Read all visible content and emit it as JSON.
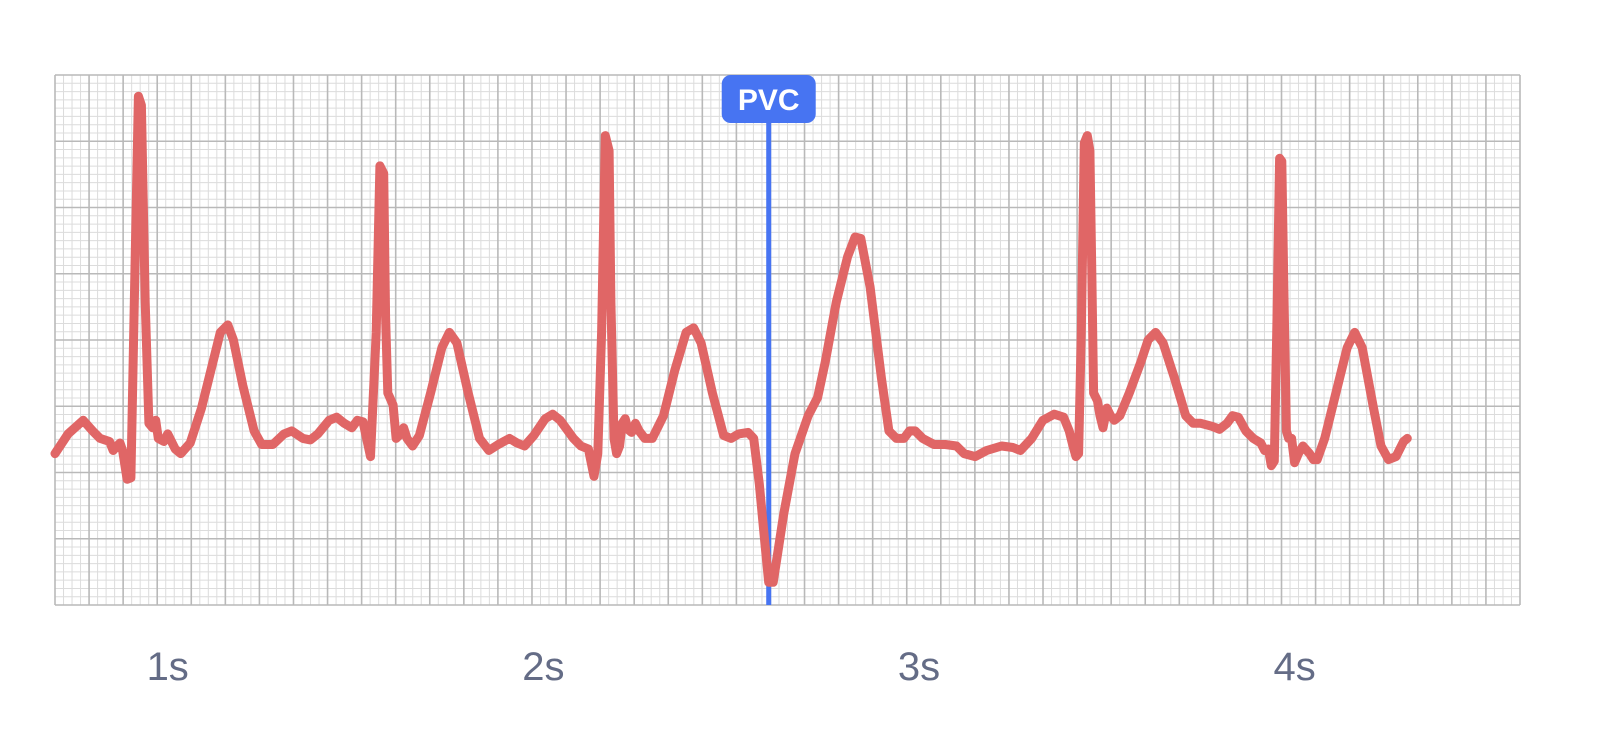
{
  "chart_data": {
    "type": "line",
    "title": "",
    "xlabel": "",
    "ylabel": "",
    "x_range": [
      0.7,
      4.6
    ],
    "y_range": [
      -1.0,
      2.5
    ],
    "x_ticks": [
      {
        "value": 1,
        "label": "1s"
      },
      {
        "value": 2,
        "label": "2s"
      },
      {
        "value": 3,
        "label": "3s"
      },
      {
        "value": 4,
        "label": "4s"
      }
    ],
    "grid": true,
    "legend": "none",
    "series": [
      {
        "color": "#e06666",
        "points": [
          [
            0.7,
            0.0
          ],
          [
            0.735,
            0.13
          ],
          [
            0.775,
            0.22
          ],
          [
            0.8,
            0.15
          ],
          [
            0.82,
            0.1
          ],
          [
            0.845,
            0.08
          ],
          [
            0.855,
            0.02
          ],
          [
            0.865,
            0.05
          ],
          [
            0.873,
            0.07
          ],
          [
            0.88,
            0.02
          ],
          [
            0.892,
            -0.17
          ],
          [
            0.902,
            -0.16
          ],
          [
            0.912,
            1.1
          ],
          [
            0.922,
            2.36
          ],
          [
            0.93,
            2.3
          ],
          [
            0.94,
            1.0
          ],
          [
            0.95,
            0.2
          ],
          [
            0.96,
            0.17
          ],
          [
            0.968,
            0.22
          ],
          [
            0.975,
            0.1
          ],
          [
            0.99,
            0.08
          ],
          [
            1.0,
            0.13
          ],
          [
            1.02,
            0.03
          ],
          [
            1.035,
            0.0
          ],
          [
            1.06,
            0.07
          ],
          [
            1.09,
            0.3
          ],
          [
            1.12,
            0.6
          ],
          [
            1.14,
            0.8
          ],
          [
            1.16,
            0.85
          ],
          [
            1.175,
            0.75
          ],
          [
            1.2,
            0.45
          ],
          [
            1.23,
            0.15
          ],
          [
            1.25,
            0.06
          ],
          [
            1.28,
            0.06
          ],
          [
            1.31,
            0.13
          ],
          [
            1.33,
            0.15
          ],
          [
            1.36,
            0.1
          ],
          [
            1.38,
            0.09
          ],
          [
            1.4,
            0.13
          ],
          [
            1.43,
            0.22
          ],
          [
            1.45,
            0.24
          ],
          [
            1.47,
            0.2
          ],
          [
            1.49,
            0.17
          ],
          [
            1.505,
            0.22
          ],
          [
            1.52,
            0.21
          ],
          [
            1.54,
            -0.02
          ],
          [
            1.555,
            0.8
          ],
          [
            1.565,
            1.9
          ],
          [
            1.575,
            1.85
          ],
          [
            1.58,
            0.9
          ],
          [
            1.586,
            0.4
          ],
          [
            1.6,
            0.32
          ],
          [
            1.608,
            0.1
          ],
          [
            1.62,
            0.13
          ],
          [
            1.628,
            0.17
          ],
          [
            1.637,
            0.1
          ],
          [
            1.652,
            0.05
          ],
          [
            1.67,
            0.12
          ],
          [
            1.7,
            0.4
          ],
          [
            1.73,
            0.7
          ],
          [
            1.75,
            0.8
          ],
          [
            1.77,
            0.73
          ],
          [
            1.8,
            0.4
          ],
          [
            1.83,
            0.1
          ],
          [
            1.855,
            0.02
          ],
          [
            1.88,
            0.06
          ],
          [
            1.91,
            0.1
          ],
          [
            1.93,
            0.07
          ],
          [
            1.95,
            0.05
          ],
          [
            1.975,
            0.12
          ],
          [
            2.005,
            0.23
          ],
          [
            2.025,
            0.26
          ],
          [
            2.045,
            0.22
          ],
          [
            2.08,
            0.1
          ],
          [
            2.1,
            0.05
          ],
          [
            2.12,
            0.03
          ],
          [
            2.135,
            -0.15
          ],
          [
            2.145,
            0.0
          ],
          [
            2.155,
            0.8
          ],
          [
            2.165,
            2.1
          ],
          [
            2.175,
            2.0
          ],
          [
            2.18,
            1.0
          ],
          [
            2.188,
            0.1
          ],
          [
            2.195,
            0.0
          ],
          [
            2.203,
            0.05
          ],
          [
            2.21,
            0.2
          ],
          [
            2.218,
            0.23
          ],
          [
            2.225,
            0.16
          ],
          [
            2.235,
            0.14
          ],
          [
            2.245,
            0.2
          ],
          [
            2.255,
            0.15
          ],
          [
            2.27,
            0.1
          ],
          [
            2.29,
            0.1
          ],
          [
            2.32,
            0.25
          ],
          [
            2.35,
            0.55
          ],
          [
            2.38,
            0.8
          ],
          [
            2.4,
            0.83
          ],
          [
            2.42,
            0.73
          ],
          [
            2.45,
            0.4
          ],
          [
            2.48,
            0.12
          ],
          [
            2.5,
            0.1
          ],
          [
            2.52,
            0.13
          ],
          [
            2.545,
            0.14
          ],
          [
            2.56,
            0.1
          ],
          [
            2.575,
            -0.2
          ],
          [
            2.59,
            -0.6
          ],
          [
            2.6,
            -0.85
          ],
          [
            2.612,
            -0.85
          ],
          [
            2.64,
            -0.4
          ],
          [
            2.67,
            0.0
          ],
          [
            2.705,
            0.25
          ],
          [
            2.73,
            0.37
          ],
          [
            2.75,
            0.6
          ],
          [
            2.78,
            1.0
          ],
          [
            2.81,
            1.3
          ],
          [
            2.83,
            1.43
          ],
          [
            2.845,
            1.42
          ],
          [
            2.87,
            1.1
          ],
          [
            2.9,
            0.5
          ],
          [
            2.92,
            0.15
          ],
          [
            2.94,
            0.1
          ],
          [
            2.96,
            0.1
          ],
          [
            2.975,
            0.15
          ],
          [
            2.99,
            0.15
          ],
          [
            3.01,
            0.1
          ],
          [
            3.04,
            0.06
          ],
          [
            3.07,
            0.06
          ],
          [
            3.1,
            0.05
          ],
          [
            3.12,
            0.0
          ],
          [
            3.15,
            -0.02
          ],
          [
            3.18,
            0.02
          ],
          [
            3.22,
            0.05
          ],
          [
            3.25,
            0.04
          ],
          [
            3.27,
            0.02
          ],
          [
            3.3,
            0.1
          ],
          [
            3.33,
            0.22
          ],
          [
            3.36,
            0.26
          ],
          [
            3.385,
            0.24
          ],
          [
            3.4,
            0.15
          ],
          [
            3.41,
            0.05
          ],
          [
            3.418,
            -0.02
          ],
          [
            3.425,
            0.0
          ],
          [
            3.432,
            0.8
          ],
          [
            3.44,
            2.05
          ],
          [
            3.448,
            2.1
          ],
          [
            3.455,
            2.0
          ],
          [
            3.46,
            1.2
          ],
          [
            3.465,
            0.4
          ],
          [
            3.475,
            0.35
          ],
          [
            3.482,
            0.25
          ],
          [
            3.49,
            0.17
          ],
          [
            3.5,
            0.3
          ],
          [
            3.51,
            0.25
          ],
          [
            3.52,
            0.22
          ],
          [
            3.535,
            0.25
          ],
          [
            3.56,
            0.4
          ],
          [
            3.59,
            0.6
          ],
          [
            3.61,
            0.75
          ],
          [
            3.63,
            0.8
          ],
          [
            3.65,
            0.73
          ],
          [
            3.68,
            0.5
          ],
          [
            3.71,
            0.25
          ],
          [
            3.73,
            0.2
          ],
          [
            3.75,
            0.2
          ],
          [
            3.78,
            0.18
          ],
          [
            3.8,
            0.16
          ],
          [
            3.82,
            0.2
          ],
          [
            3.835,
            0.25
          ],
          [
            3.85,
            0.24
          ],
          [
            3.87,
            0.15
          ],
          [
            3.89,
            0.1
          ],
          [
            3.91,
            0.07
          ],
          [
            3.92,
            0.02
          ],
          [
            3.93,
            0.03
          ],
          [
            3.938,
            -0.08
          ],
          [
            3.946,
            -0.05
          ],
          [
            3.953,
            0.9
          ],
          [
            3.96,
            1.95
          ],
          [
            3.966,
            1.93
          ],
          [
            3.972,
            1.0
          ],
          [
            3.978,
            0.15
          ],
          [
            3.984,
            0.1
          ],
          [
            3.992,
            0.1
          ],
          [
            4.0,
            -0.06
          ],
          [
            4.01,
            0.0
          ],
          [
            4.022,
            0.05
          ],
          [
            4.04,
            0.0
          ],
          [
            4.05,
            -0.04
          ],
          [
            4.06,
            -0.04
          ],
          [
            4.08,
            0.1
          ],
          [
            4.11,
            0.4
          ],
          [
            4.14,
            0.7
          ],
          [
            4.16,
            0.8
          ],
          [
            4.18,
            0.7
          ],
          [
            4.21,
            0.3
          ],
          [
            4.23,
            0.05
          ],
          [
            4.25,
            -0.04
          ],
          [
            4.27,
            -0.02
          ],
          [
            4.29,
            0.08
          ],
          [
            4.3,
            0.1
          ]
        ]
      }
    ],
    "annotations": [
      {
        "x": 2.6,
        "label": "PVC",
        "color": "#4774f2"
      }
    ]
  }
}
